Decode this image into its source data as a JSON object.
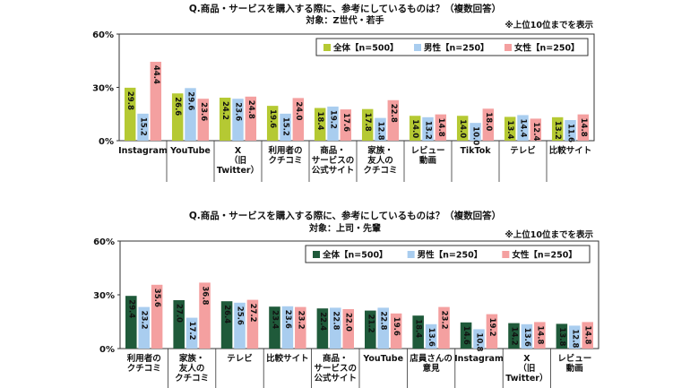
{
  "chart_data": [
    {
      "type": "bar",
      "title": "Q.商品・サービスを購入する際に、参考にしているものは？（複数回答）",
      "subtitle": "対象：Z世代・若手",
      "note": "※上位10位までを表示",
      "yticks": [
        "60%",
        "30%",
        "0%"
      ],
      "ylim": [
        0,
        60
      ],
      "grid": false,
      "legend_position": "top-right",
      "categories": [
        [
          "Instagram"
        ],
        [
          "YouTube"
        ],
        [
          "X",
          "（旧",
          "Twitter）"
        ],
        [
          "利用者の",
          "クチコミ"
        ],
        [
          "商品・",
          "サービスの",
          "公式サイト"
        ],
        [
          "家族・",
          "友人の",
          "クチコミ"
        ],
        [
          "レビュー",
          "動画"
        ],
        [
          "TikTok"
        ],
        [
          "テレビ"
        ],
        [
          "比較サイト"
        ]
      ],
      "series": [
        {
          "name": "全体【n=500】",
          "color": "#b5c933",
          "label_color": "#111111",
          "values": [
            29.8,
            26.6,
            24.2,
            19.6,
            18.4,
            17.8,
            14.0,
            14.0,
            13.4,
            13.2
          ]
        },
        {
          "name": "男性【n=250】",
          "color": "#a9cdef",
          "label_color": "#111111",
          "values": [
            15.2,
            29.6,
            23.6,
            15.2,
            19.2,
            12.8,
            13.2,
            10.0,
            14.4,
            11.6
          ]
        },
        {
          "name": "女性【n=250】",
          "color": "#f4a0a0",
          "label_color": "#111111",
          "values": [
            44.4,
            23.6,
            24.8,
            24.0,
            17.6,
            22.8,
            14.8,
            18.0,
            12.4,
            14.8
          ]
        }
      ]
    },
    {
      "type": "bar",
      "title": "Q.商品・サービスを購入する際に、参考にしているものは？（複数回答）",
      "subtitle": "対象：上司・先輩",
      "note": "※上位10位までを表示",
      "yticks": [
        "60%",
        "30%",
        "0%"
      ],
      "ylim": [
        0,
        60
      ],
      "grid": false,
      "legend_position": "top-right",
      "categories": [
        [
          "利用者の",
          "クチコミ"
        ],
        [
          "家族・",
          "友人の",
          "クチコミ"
        ],
        [
          "テレビ"
        ],
        [
          "比較サイト"
        ],
        [
          "商品・",
          "サービスの",
          "公式サイト"
        ],
        [
          "YouTube"
        ],
        [
          "店員さんの",
          "意見"
        ],
        [
          "Instagram"
        ],
        [
          "X",
          "（旧",
          "Twitter）"
        ],
        [
          "レビュー",
          "動画"
        ]
      ],
      "series": [
        {
          "name": "全体【n=500】",
          "color": "#1f5a3a",
          "label_color": "#ffffff",
          "values": [
            29.4,
            27.0,
            26.4,
            23.4,
            22.4,
            21.2,
            18.4,
            14.6,
            14.2,
            13.8
          ]
        },
        {
          "name": "男性【n=250】",
          "color": "#a9cdef",
          "label_color": "#111111",
          "values": [
            23.2,
            17.2,
            25.6,
            23.6,
            22.8,
            22.8,
            13.6,
            10.8,
            13.6,
            12.8
          ]
        },
        {
          "name": "女性【n=250】",
          "color": "#f4a0a0",
          "label_color": "#111111",
          "values": [
            35.6,
            36.8,
            27.2,
            23.2,
            22.0,
            19.6,
            23.2,
            19.2,
            14.8,
            14.8
          ]
        }
      ]
    }
  ]
}
